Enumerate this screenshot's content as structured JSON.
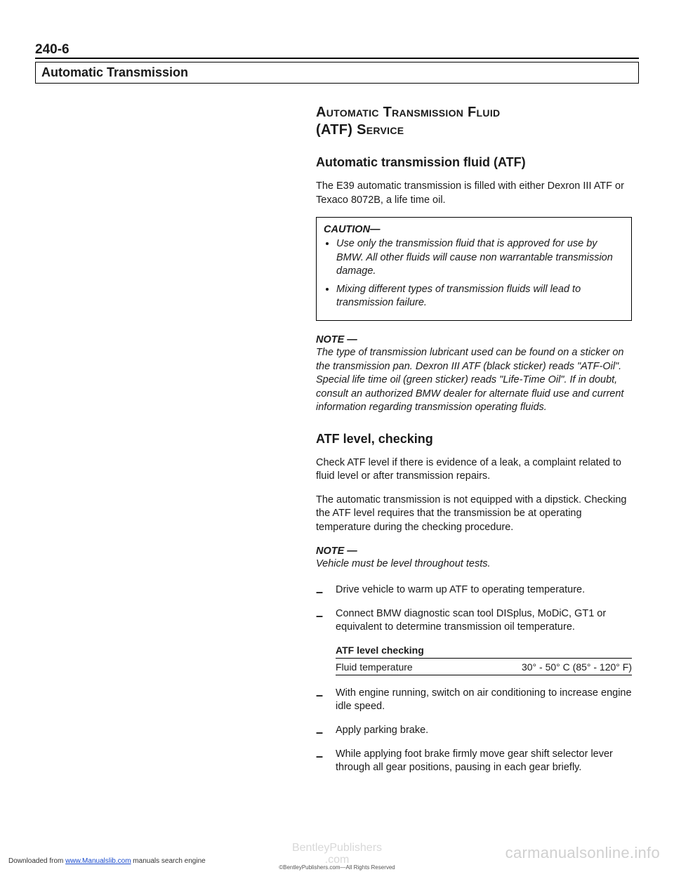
{
  "page_number": "240-6",
  "section_header": "Automatic Transmission",
  "major_title_line1": "Automatic Transmission Fluid",
  "major_title_line2": "(ATF) Service",
  "h1": "Automatic transmission fluid (ATF)",
  "p1": "The E39 automatic transmission is filled with either Dexron III ATF or Texaco 8072B, a life time oil.",
  "caution_label": "CAUTION—",
  "caution_items": [
    "Use only the transmission fluid that is approved for use by BMW. All other fluids will cause non warrantable transmission damage.",
    "Mixing different types of transmission fluids will lead to transmission failure."
  ],
  "note1_label": "NOTE —",
  "note1_body": "The type of transmission lubricant used can be found on a sticker on the transmission pan. Dexron III ATF (black sticker) reads \"ATF-Oil\". Special life time oil (green sticker) reads \"Life-Time Oil\". If in doubt, consult an authorized BMW dealer for alternate fluid use and current information regarding transmission operating fluids.",
  "h2": "ATF level, checking",
  "p2": "Check ATF level if there is evidence of a leak, a complaint related to fluid level or after transmission repairs.",
  "p3": "The automatic transmission is not equipped with a dipstick. Checking the ATF level requires that the transmission be at operating temperature during the checking procedure.",
  "note2_label": "NOTE —",
  "note2_body": "Vehicle must be level throughout tests.",
  "steps1": [
    "Drive vehicle to warm up ATF to operating temperature.",
    "Connect BMW diagnostic scan tool DISplus, MoDiC, GT1 or equivalent to determine transmission oil temperature."
  ],
  "table": {
    "title": "ATF level checking",
    "row_label": "Fluid temperature",
    "row_value": "30° - 50° C (85° - 120° F)"
  },
  "steps2": [
    "With engine running, switch on air conditioning to increase engine idle speed.",
    "Apply parking brake.",
    "While applying foot brake firmly move gear shift selector lever through all gear positions, pausing in each gear briefly."
  ],
  "watermark_center_line1": "BentleyPublishers",
  "watermark_center_line2": ".com",
  "watermark_right": "carmanualsonline.info",
  "footer_left_pre": "Downloaded from ",
  "footer_left_link": "www.Manualslib.com",
  "footer_left_post": " manuals search engine",
  "footer_micro": "©BentleyPublishers.com—All Rights Reserved"
}
